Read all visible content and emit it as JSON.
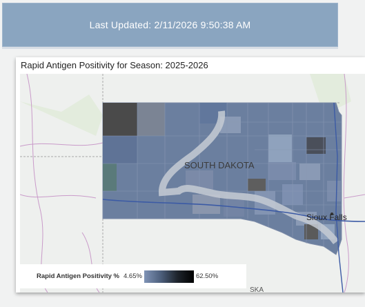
{
  "banner": {
    "last_updated": "Last Updated: 2/11/2026 9:50:38 AM"
  },
  "card": {
    "title": "Rapid Antigen Positivity for Season: 2025-2026"
  },
  "map": {
    "state_label": "SOUTH DAKOTA",
    "city_label": "Sioux Falls",
    "partial_label": "SKA",
    "colors": {
      "base_fill": "#6b7f9f",
      "low": "#7f93b6",
      "high": "#000000",
      "basemap": "#eef0ee",
      "road": "#4a66a8",
      "border": "#b39bbf"
    }
  },
  "legend": {
    "label": "Rapid Antigen Positivity %",
    "min": "4.65%",
    "max": "62.50%"
  }
}
